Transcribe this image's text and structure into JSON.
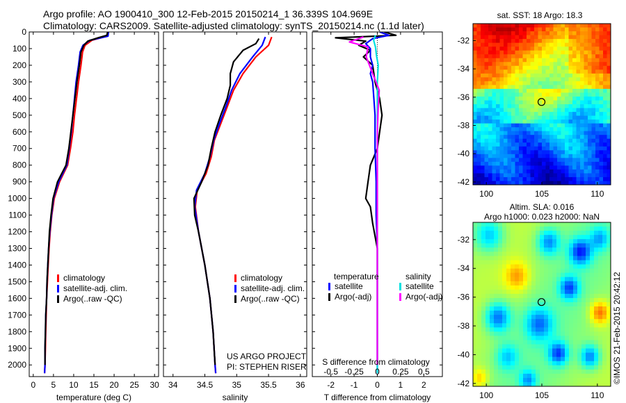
{
  "header": {
    "title_line1": "Argo profile: AO 1900410_300 12-Feb-2015 20150214_1 36.339S 104.969E",
    "title_line2": "Climatology: CARS2009. Satellite-adjusted climatology: synTS_20150214.nc (1.1d later)"
  },
  "copyright": "©IMOS 21-Feb-2015 20:42:12",
  "colors": {
    "climatology": "#ff0000",
    "satellite": "#0000ff",
    "argo": "#000000",
    "sal_satellite": "#00e0e0",
    "sal_argo": "#ff00ff"
  },
  "chart_data": [
    {
      "type": "line",
      "xlabel": "temperature (deg C)",
      "xlim": [
        -1,
        31
      ],
      "xticks": [
        0,
        5,
        10,
        15,
        20,
        25,
        30
      ],
      "ylim": [
        2070,
        0
      ],
      "yticks": [
        0,
        100,
        200,
        300,
        400,
        500,
        600,
        700,
        800,
        900,
        1000,
        1100,
        1200,
        1300,
        1400,
        1500,
        1600,
        1700,
        1800,
        1900,
        2000
      ],
      "legend": {
        "placement": "bottom-left",
        "entries": [
          "climatology",
          "satellite-adj. clim.",
          "Argo(..raw -QC)"
        ]
      },
      "series": [
        {
          "name": "climatology",
          "color": "#ff0000",
          "points": [
            [
              18.5,
              0
            ],
            [
              18.3,
              25
            ],
            [
              14.5,
              50
            ],
            [
              12.8,
              80
            ],
            [
              12.2,
              120
            ],
            [
              11.8,
              200
            ],
            [
              11.2,
              300
            ],
            [
              10.7,
              400
            ],
            [
              10.2,
              500
            ],
            [
              9.8,
              600
            ],
            [
              9.2,
              700
            ],
            [
              8.5,
              800
            ],
            [
              6.5,
              900
            ],
            [
              5.2,
              1000
            ],
            [
              4.6,
              1100
            ],
            [
              4.2,
              1200
            ],
            [
              3.9,
              1300
            ],
            [
              3.7,
              1400
            ],
            [
              3.5,
              1500
            ],
            [
              3.3,
              1600
            ],
            [
              3.2,
              1700
            ],
            [
              3.1,
              1800
            ],
            [
              3.0,
              1900
            ],
            [
              2.9,
              2000
            ],
            [
              2.8,
              2050
            ]
          ]
        },
        {
          "name": "satellite-adj. clim.",
          "color": "#0000ff",
          "points": [
            [
              18.6,
              0
            ],
            [
              18.5,
              25
            ],
            [
              14.0,
              50
            ],
            [
              12.3,
              80
            ],
            [
              11.6,
              120
            ],
            [
              11.2,
              200
            ],
            [
              10.6,
              300
            ],
            [
              10.2,
              400
            ],
            [
              9.8,
              500
            ],
            [
              9.4,
              600
            ],
            [
              8.9,
              700
            ],
            [
              8.3,
              800
            ],
            [
              6.3,
              900
            ],
            [
              5.0,
              1000
            ],
            [
              4.5,
              1100
            ],
            [
              4.1,
              1200
            ],
            [
              3.8,
              1300
            ],
            [
              3.6,
              1400
            ],
            [
              3.4,
              1500
            ],
            [
              3.3,
              1600
            ],
            [
              3.1,
              1700
            ],
            [
              3.0,
              1800
            ],
            [
              2.9,
              1900
            ],
            [
              2.9,
              2000
            ],
            [
              2.8,
              2050
            ]
          ]
        },
        {
          "name": "Argo(..raw -QC)",
          "color": "#000000",
          "points": [
            [
              18.4,
              0
            ],
            [
              18.2,
              20
            ],
            [
              16.0,
              35
            ],
            [
              13.5,
              55
            ],
            [
              12.5,
              80
            ],
            [
              11.8,
              120
            ],
            [
              11.4,
              200
            ],
            [
              10.8,
              300
            ],
            [
              10.3,
              400
            ],
            [
              9.8,
              500
            ],
            [
              9.3,
              600
            ],
            [
              8.8,
              700
            ],
            [
              8.1,
              800
            ],
            [
              6.0,
              900
            ],
            [
              4.9,
              1000
            ],
            [
              4.4,
              1100
            ],
            [
              4.0,
              1200
            ],
            [
              3.8,
              1300
            ],
            [
              3.6,
              1400
            ],
            [
              3.4,
              1500
            ],
            [
              3.3,
              1600
            ],
            [
              3.1,
              1700
            ],
            [
              3.0,
              1800
            ],
            [
              2.9,
              1900
            ],
            [
              2.9,
              2000
            ]
          ]
        }
      ]
    },
    {
      "type": "line",
      "xlabel": "salinity",
      "xlim": [
        33.85,
        36.1
      ],
      "xticks": [
        34,
        34.5,
        35,
        35.5,
        36
      ],
      "xtick_labels": [
        "34",
        "34.5",
        "35",
        "35.5",
        "36"
      ],
      "ylim": [
        2070,
        0
      ],
      "legend": {
        "placement": "bottom-right",
        "entries": [
          "climatology",
          "satellite-adj. clim.",
          "Argo(..raw -QC)"
        ]
      },
      "annotations": [
        "US ARGO PROJECT",
        "PI: STEPHEN RISER"
      ],
      "series": [
        {
          "name": "climatology",
          "color": "#ff0000",
          "points": [
            [
              35.55,
              30
            ],
            [
              35.5,
              80
            ],
            [
              35.3,
              150
            ],
            [
              35.1,
              250
            ],
            [
              34.95,
              350
            ],
            [
              34.85,
              450
            ],
            [
              34.75,
              550
            ],
            [
              34.65,
              650
            ],
            [
              34.6,
              750
            ],
            [
              34.52,
              850
            ],
            [
              34.38,
              950
            ],
            [
              34.35,
              1050
            ],
            [
              34.4,
              1200
            ],
            [
              34.5,
              1400
            ],
            [
              34.58,
              1600
            ],
            [
              34.63,
              1800
            ],
            [
              34.66,
              2000
            ],
            [
              34.67,
              2050
            ]
          ]
        },
        {
          "name": "satellite-adj. clim.",
          "color": "#0000ff",
          "points": [
            [
              35.45,
              30
            ],
            [
              35.4,
              80
            ],
            [
              35.25,
              150
            ],
            [
              35.05,
              250
            ],
            [
              34.92,
              350
            ],
            [
              34.83,
              450
            ],
            [
              34.73,
              550
            ],
            [
              34.64,
              650
            ],
            [
              34.58,
              750
            ],
            [
              34.5,
              850
            ],
            [
              34.37,
              950
            ],
            [
              34.34,
              1050
            ],
            [
              34.4,
              1200
            ],
            [
              34.5,
              1400
            ],
            [
              34.58,
              1600
            ],
            [
              34.63,
              1800
            ],
            [
              34.66,
              2000
            ],
            [
              34.67,
              2050
            ]
          ]
        },
        {
          "name": "Argo(..raw -QC)",
          "color": "#000000",
          "points": [
            [
              35.35,
              40
            ],
            [
              35.3,
              70
            ],
            [
              35.1,
              110
            ],
            [
              34.95,
              180
            ],
            [
              34.9,
              250
            ],
            [
              34.9,
              320
            ],
            [
              34.85,
              400
            ],
            [
              34.75,
              500
            ],
            [
              34.66,
              600
            ],
            [
              34.6,
              700
            ],
            [
              34.55,
              800
            ],
            [
              34.45,
              900
            ],
            [
              34.33,
              1000
            ],
            [
              34.34,
              1100
            ],
            [
              34.4,
              1200
            ],
            [
              34.5,
              1400
            ],
            [
              34.58,
              1600
            ],
            [
              34.63,
              1800
            ],
            [
              34.66,
              2000
            ]
          ]
        }
      ]
    },
    {
      "type": "line",
      "xlabel": "T difference from climatology",
      "xlabel_top": "S difference from climatology",
      "xlim": [
        -2.8,
        2.8
      ],
      "xticks": [
        -2,
        -1,
        0,
        1,
        2
      ],
      "top_ticks": [
        -0.5,
        -0.25,
        0,
        0.25,
        0.5
      ],
      "top_tick_labels": [
        "-0.5",
        "-0.25",
        "0",
        "0.25",
        "0.5"
      ],
      "ylim": [
        2070,
        0
      ],
      "legend": {
        "placement": "bottom",
        "temperature_header": "temperature",
        "salinity_header": "salinity",
        "entries": [
          "satellite",
          "Argo(-adj)",
          "satellite",
          "Argo(-adj)"
        ]
      },
      "series": [
        {
          "name": "T satellite",
          "color": "#0000ff",
          "points": [
            [
              0.1,
              0
            ],
            [
              0.5,
              20
            ],
            [
              -0.2,
              40
            ],
            [
              -0.5,
              70
            ],
            [
              -0.3,
              100
            ],
            [
              -0.3,
              150
            ],
            [
              -0.2,
              200
            ],
            [
              -0.3,
              250
            ],
            [
              -0.2,
              300
            ],
            [
              -0.15,
              400
            ],
            [
              -0.1,
              500
            ],
            [
              -0.1,
              700
            ],
            [
              -0.05,
              900
            ],
            [
              -0.05,
              1100
            ],
            [
              0,
              1300
            ],
            [
              0,
              1600
            ],
            [
              0,
              2000
            ],
            [
              0,
              2050
            ]
          ]
        },
        {
          "name": "T Argo(-adj)",
          "color": "#000000",
          "points": [
            [
              0.3,
              0
            ],
            [
              0.8,
              20
            ],
            [
              -1.8,
              35
            ],
            [
              -0.5,
              55
            ],
            [
              -0.8,
              80
            ],
            [
              -0.3,
              110
            ],
            [
              -0.6,
              150
            ],
            [
              -0.2,
              200
            ],
            [
              -0.1,
              300
            ],
            [
              0.1,
              400
            ],
            [
              0.2,
              500
            ],
            [
              0.1,
              600
            ],
            [
              0.0,
              700
            ],
            [
              -0.3,
              800
            ],
            [
              -0.4,
              900
            ],
            [
              -0.5,
              1000
            ],
            [
              -0.3,
              1050
            ],
            [
              -0.2,
              1150
            ],
            [
              0,
              1300
            ],
            [
              0,
              1500
            ],
            [
              0,
              2000
            ]
          ]
        },
        {
          "name": "S satellite",
          "color": "#00e0e0",
          "points": [
            [
              -0.02,
              20
            ],
            [
              -0.04,
              50
            ],
            [
              -0.02,
              90
            ],
            [
              -0.01,
              140
            ],
            [
              0.01,
              200
            ],
            [
              0.0,
              300
            ],
            [
              0.0,
              500
            ],
            [
              0.0,
              800
            ],
            [
              0.0,
              1200
            ],
            [
              0,
              1600
            ],
            [
              0,
              2050
            ]
          ]
        },
        {
          "name": "S Argo(-adj)",
          "color": "#ff00ff",
          "points": [
            [
              -0.15,
              30
            ],
            [
              -0.3,
              60
            ],
            [
              -0.1,
              90
            ],
            [
              -0.12,
              150
            ],
            [
              -0.05,
              250
            ],
            [
              0.02,
              350
            ],
            [
              0.01,
              450
            ],
            [
              0.0,
              600
            ],
            [
              0.0,
              1000
            ],
            [
              0.0,
              1300
            ],
            [
              0,
              1800
            ],
            [
              0,
              2000
            ]
          ]
        }
      ]
    },
    {
      "type": "heatmap",
      "title": "sat. SST: 18 Argo: 18.3",
      "xlim": [
        98.8,
        111.2
      ],
      "ylim": [
        -42.2,
        -30.8
      ],
      "xticks": [
        100,
        105,
        110
      ],
      "yticks": [
        -32,
        -34,
        -36,
        -38,
        -40,
        -42
      ],
      "marker": [
        104.97,
        -36.34
      ]
    },
    {
      "type": "heatmap",
      "title_line1": "Altim. SLA: 0.016",
      "title_line2": "Argo h1000: 0.023 h2000: NaN",
      "xlim": [
        98.8,
        111.2
      ],
      "ylim": [
        -42.2,
        -30.8
      ],
      "xticks": [
        100,
        105,
        110
      ],
      "yticks": [
        -32,
        -34,
        -36,
        -38,
        -40,
        -42
      ],
      "marker": [
        104.97,
        -36.34
      ]
    }
  ]
}
